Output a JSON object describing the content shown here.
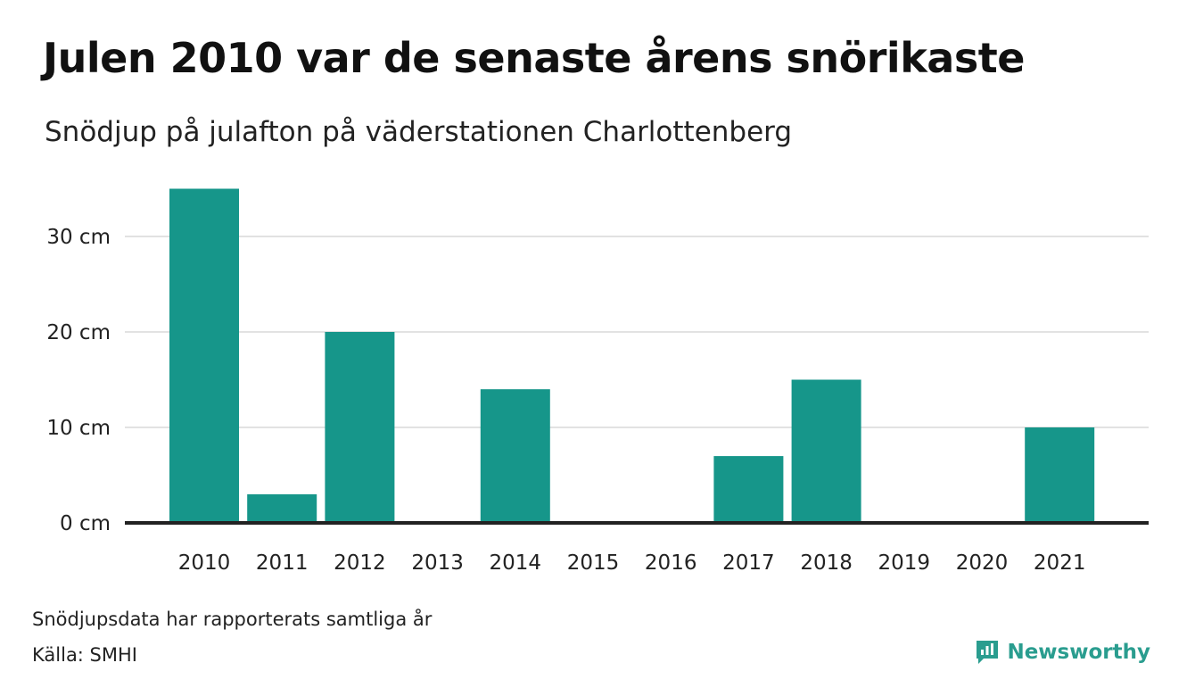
{
  "header": {
    "title": "Julen 2010 var de senaste årens snörikaste",
    "subtitle": "Snödjup på julafton på väderstationen Charlottenberg"
  },
  "footer": {
    "note": "Snödjupsdata har rapporterats samtliga år",
    "source": "Källa: SMHI"
  },
  "brand": {
    "name": "Newsworthy",
    "icon": "newsworthy-logo-icon",
    "color": "#2a9d8f"
  },
  "chart_data": {
    "type": "bar",
    "categories": [
      "2010",
      "2011",
      "2012",
      "2013",
      "2014",
      "2015",
      "2016",
      "2017",
      "2018",
      "2019",
      "2020",
      "2021"
    ],
    "values": [
      35,
      3,
      20,
      0,
      14,
      0,
      0,
      7,
      15,
      0,
      0,
      10
    ],
    "ylim": [
      0,
      35
    ],
    "yticks": [
      0,
      10,
      20,
      30
    ],
    "ytick_labels": [
      "0 cm",
      "10 cm",
      "20 cm",
      "30 cm"
    ],
    "grid": true,
    "bar_color": "#16968a",
    "grid_color": "#e2e2e2",
    "axis_color": "#222222"
  }
}
